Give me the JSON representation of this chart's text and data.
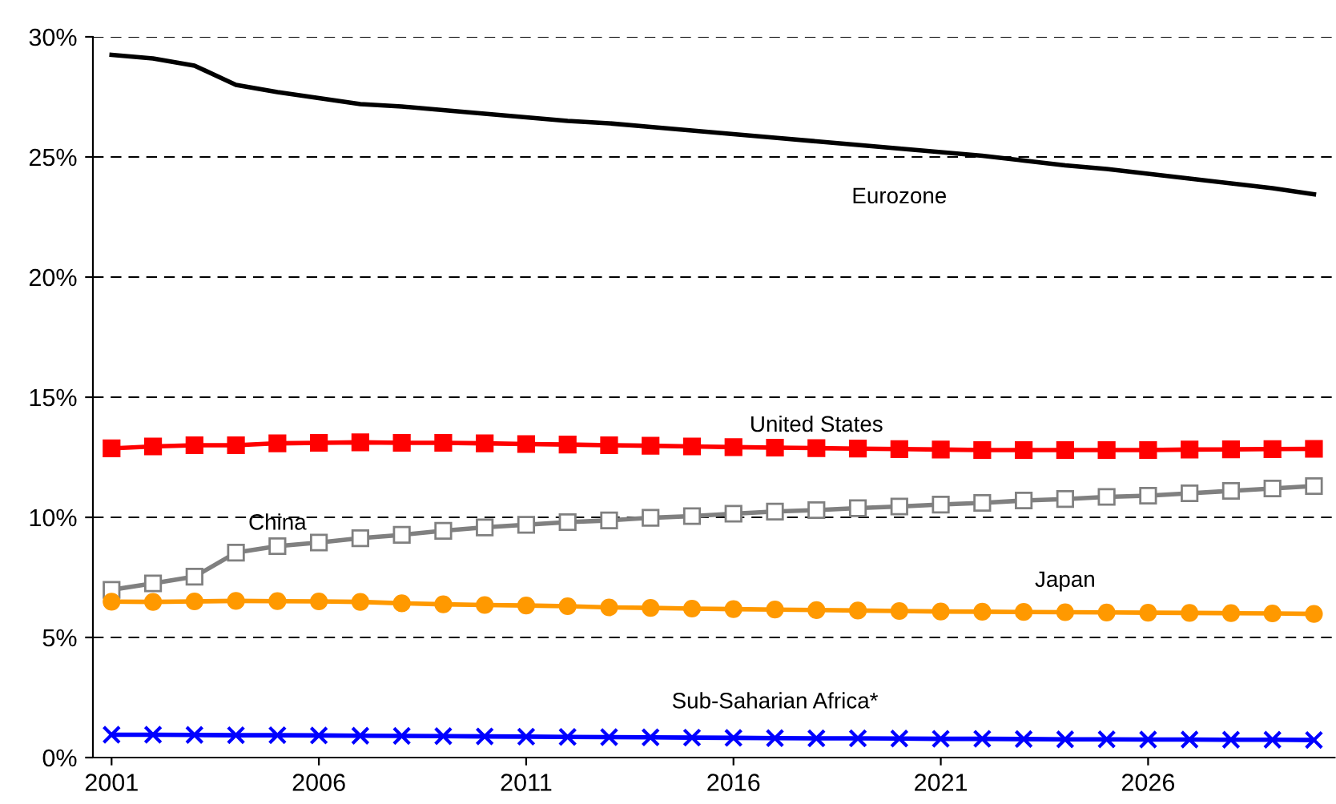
{
  "chart_data": {
    "type": "line",
    "x": [
      2001,
      2002,
      2003,
      2004,
      2005,
      2006,
      2007,
      2008,
      2009,
      2010,
      2011,
      2012,
      2013,
      2014,
      2015,
      2016,
      2017,
      2018,
      2019,
      2020,
      2021,
      2022,
      2023,
      2024,
      2025,
      2026,
      2027,
      2028,
      2029,
      2030
    ],
    "series": [
      {
        "name": "Eurozone",
        "color": "#000000",
        "marker": "none",
        "values": [
          29.25,
          29.1,
          28.8,
          28.0,
          27.7,
          27.45,
          27.2,
          27.1,
          26.95,
          26.8,
          26.65,
          26.5,
          26.4,
          26.25,
          26.1,
          25.95,
          25.8,
          25.65,
          25.5,
          25.35,
          25.2,
          25.05,
          24.85,
          24.65,
          24.5,
          24.3,
          24.1,
          23.9,
          23.7,
          23.45
        ]
      },
      {
        "name": "United States",
        "color": "#ff0000",
        "marker": "square",
        "values": [
          12.87,
          12.95,
          13.0,
          13.0,
          13.08,
          13.1,
          13.12,
          13.1,
          13.1,
          13.08,
          13.05,
          13.03,
          13.0,
          12.98,
          12.95,
          12.92,
          12.9,
          12.88,
          12.86,
          12.84,
          12.82,
          12.8,
          12.8,
          12.8,
          12.8,
          12.8,
          12.82,
          12.83,
          12.84,
          12.85
        ]
      },
      {
        "name": "China",
        "color": "#808080",
        "marker": "square",
        "values": [
          6.98,
          7.25,
          7.53,
          8.53,
          8.8,
          8.95,
          9.13,
          9.27,
          9.44,
          9.58,
          9.69,
          9.8,
          9.87,
          9.98,
          10.05,
          10.15,
          10.24,
          10.3,
          10.38,
          10.45,
          10.53,
          10.6,
          10.7,
          10.76,
          10.85,
          10.9,
          11.0,
          11.1,
          11.2,
          11.3
        ]
      },
      {
        "name": "Japan",
        "color": "#ff9900",
        "marker": "circle",
        "values": [
          6.49,
          6.48,
          6.5,
          6.52,
          6.51,
          6.5,
          6.48,
          6.42,
          6.38,
          6.35,
          6.33,
          6.3,
          6.25,
          6.23,
          6.2,
          6.18,
          6.16,
          6.14,
          6.12,
          6.1,
          6.08,
          6.07,
          6.06,
          6.05,
          6.04,
          6.03,
          6.02,
          6.01,
          6.0,
          5.98
        ]
      },
      {
        "name": "Sub-Saharian Africa*",
        "color": "#0000ff",
        "marker": "cross",
        "values": [
          0.95,
          0.95,
          0.94,
          0.93,
          0.93,
          0.92,
          0.91,
          0.9,
          0.89,
          0.88,
          0.87,
          0.86,
          0.85,
          0.84,
          0.83,
          0.82,
          0.81,
          0.8,
          0.8,
          0.79,
          0.78,
          0.78,
          0.77,
          0.76,
          0.76,
          0.75,
          0.75,
          0.74,
          0.74,
          0.73
        ]
      }
    ],
    "xlim": [
      2000.55,
      2030.5
    ],
    "xticks": [
      2001,
      2006,
      2011,
      2016,
      2021,
      2026
    ],
    "ylim": [
      0,
      30
    ],
    "yticks": [
      {
        "value": 0,
        "label": "0%"
      },
      {
        "value": 5,
        "label": "5%"
      },
      {
        "value": 10,
        "label": "10%"
      },
      {
        "value": 15,
        "label": "15%"
      },
      {
        "value": 20,
        "label": "20%"
      },
      {
        "value": 25,
        "label": "25%"
      },
      {
        "value": 30,
        "label": "30%"
      }
    ],
    "grid": "y",
    "legend": false,
    "line_style": "solid"
  }
}
